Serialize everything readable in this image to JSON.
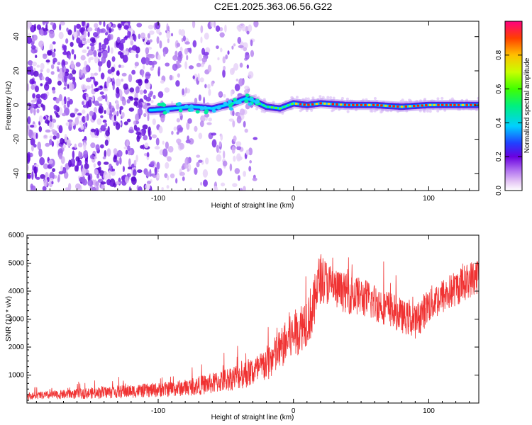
{
  "chart_data": [
    {
      "type": "heatmap",
      "title": "C2E1.2025.363.06.56.G22",
      "xlabel": "Height of straight line (km)",
      "ylabel": "Frequency (Hz)",
      "xlim": [
        -197,
        137
      ],
      "ylim": [
        -50,
        49
      ],
      "x_ticks": [
        -100,
        0,
        100
      ],
      "x_tick_labels": [
        "-100",
        "0",
        "100"
      ],
      "y_ticks": [
        -40,
        -20,
        0,
        20,
        40
      ],
      "y_tick_labels": [
        "-40",
        "-20",
        "0",
        "20",
        "40"
      ],
      "colorbar": {
        "label": "Normalized spectral amplitude",
        "range": [
          0,
          1
        ],
        "ticks": [
          0,
          0.2,
          0.4,
          0.6,
          0.8
        ],
        "tick_labels": [
          "0.0",
          "0.2",
          "0.4",
          "0.6",
          "0.8"
        ]
      },
      "signal_trace": {
        "description": "dominant frequency band",
        "x": [
          -105,
          -90,
          -75,
          -60,
          -45,
          -35,
          -28,
          -20,
          -10,
          0,
          10,
          20,
          40,
          60,
          80,
          100,
          120,
          137
        ],
        "freq_hz": [
          -3,
          -2,
          -1,
          -2,
          1,
          4,
          2,
          -1,
          -2,
          1,
          0,
          1,
          0,
          0,
          -1,
          0,
          0,
          0
        ]
      }
    },
    {
      "type": "line",
      "xlabel": "Height of straight line (km)",
      "ylabel": "SNR (10 * v/v)",
      "xlim": [
        -197,
        137
      ],
      "ylim": [
        0,
        6000
      ],
      "x_ticks": [
        -100,
        0,
        100
      ],
      "x_tick_labels": [
        "-100",
        "0",
        "100"
      ],
      "y_ticks": [
        1000,
        2000,
        3000,
        4000,
        5000,
        6000
      ],
      "y_tick_labels": [
        "1000",
        "2000",
        "3000",
        "4000",
        "5000",
        "6000"
      ],
      "series": [
        {
          "name": "SNR",
          "color": "#f03232",
          "x": [
            -197,
            -180,
            -160,
            -140,
            -120,
            -100,
            -80,
            -60,
            -45,
            -35,
            -25,
            -20,
            -15,
            -10,
            -5,
            0,
            5,
            10,
            15,
            18,
            20,
            25,
            30,
            40,
            50,
            60,
            70,
            80,
            90,
            95,
            100,
            110,
            120,
            130,
            137
          ],
          "values": [
            250,
            280,
            330,
            380,
            420,
            470,
            550,
            700,
            900,
            1050,
            1200,
            1400,
            1600,
            1900,
            2200,
            2400,
            2700,
            3000,
            3400,
            4200,
            4500,
            4300,
            4100,
            3900,
            3800,
            3600,
            3400,
            3100,
            2900,
            3200,
            3500,
            3800,
            4100,
            4400,
            4600
          ],
          "noise_amplitude": [
            120,
            150,
            180,
            220,
            240,
            260,
            300,
            380,
            450,
            520,
            600,
            650,
            700,
            750,
            800,
            850,
            900,
            950,
            1000,
            1000,
            900,
            800,
            750,
            700,
            700,
            700,
            650,
            600,
            600,
            650,
            650,
            650,
            650,
            650,
            700
          ]
        }
      ]
    }
  ],
  "colors": {
    "trace": "#f03232",
    "frame": "#000000",
    "background": "#ffffff"
  }
}
